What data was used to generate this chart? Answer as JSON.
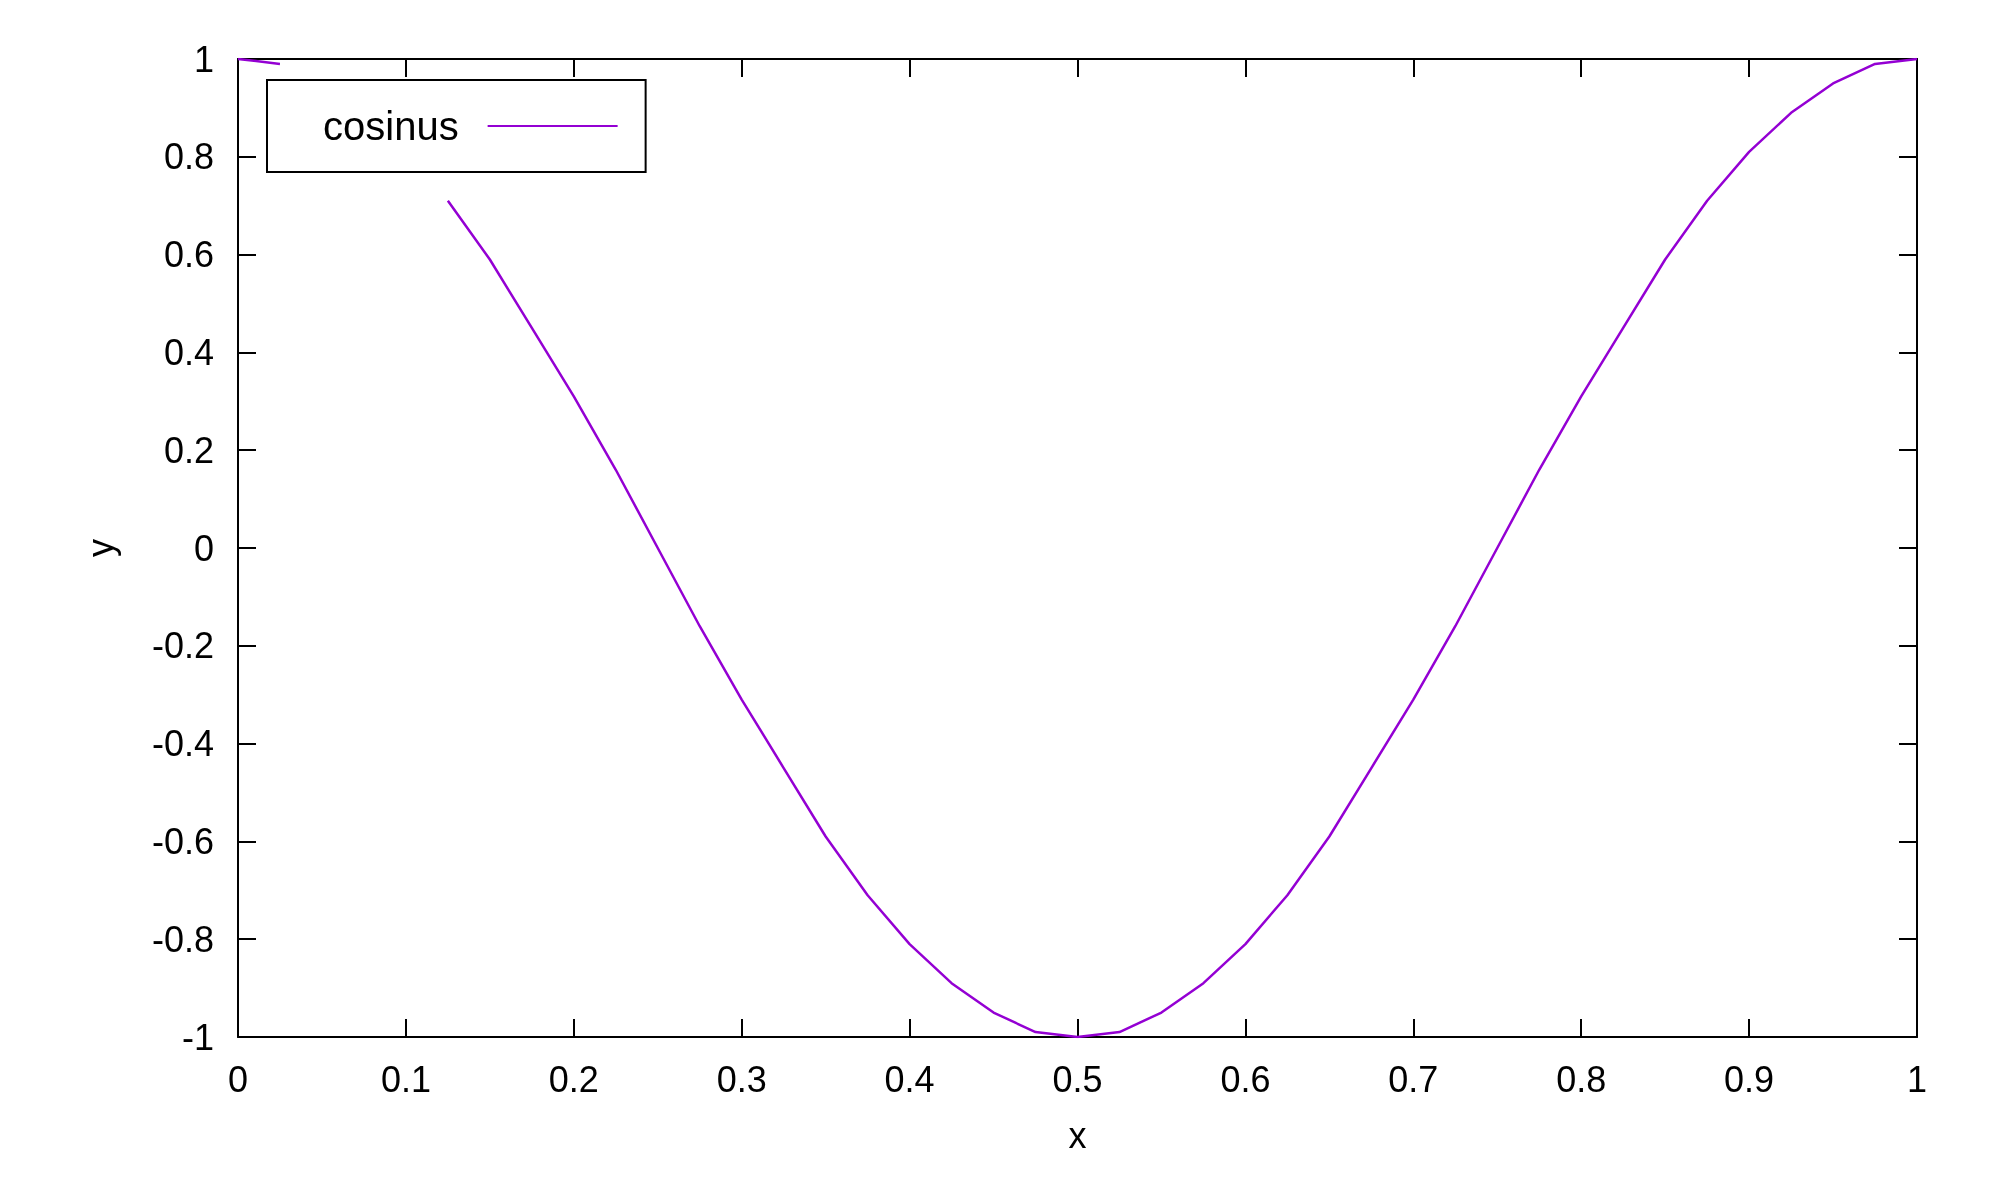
{
  "chart_data": {
    "type": "line",
    "xlabel": "x",
    "ylabel": "y",
    "x": [
      0,
      0.025,
      0.05,
      0.075,
      0.1,
      0.125,
      0.15,
      0.175,
      0.2,
      0.225,
      0.25,
      0.275,
      0.3,
      0.325,
      0.35,
      0.375,
      0.4,
      0.425,
      0.45,
      0.475,
      0.5,
      0.525,
      0.55,
      0.575,
      0.6,
      0.625,
      0.65,
      0.675,
      0.7,
      0.725,
      0.75,
      0.775,
      0.8,
      0.825,
      0.85,
      0.875,
      0.9,
      0.925,
      0.95,
      0.975,
      1
    ],
    "series": [
      {
        "name": "cosinus",
        "color": "#9400d3",
        "values": [
          1,
          0.99,
          null,
          null,
          null,
          0.71,
          0.59,
          0.45,
          0.31,
          0.16,
          0,
          -0.16,
          -0.31,
          -0.45,
          -0.59,
          -0.71,
          -0.81,
          -0.89,
          -0.95,
          -0.99,
          -1,
          -0.99,
          -0.95,
          -0.89,
          -0.81,
          -0.71,
          -0.59,
          -0.45,
          -0.31,
          -0.16,
          0,
          0.16,
          0.31,
          0.45,
          0.59,
          0.71,
          0.81,
          0.89,
          0.95,
          0.99,
          1
        ]
      }
    ],
    "xlim": [
      0,
      1
    ],
    "xticks": [
      0,
      0.1,
      0.2,
      0.3,
      0.4,
      0.5,
      0.6,
      0.7,
      0.8,
      0.9,
      1
    ],
    "ylim": [
      -1,
      1
    ],
    "yticks": [
      -1,
      -0.8,
      -0.6,
      -0.4,
      -0.2,
      0,
      0.2,
      0.4,
      0.6,
      0.8,
      1
    ],
    "grid": false,
    "legend": "top left",
    "marker": "none",
    "line_style": "solid"
  }
}
